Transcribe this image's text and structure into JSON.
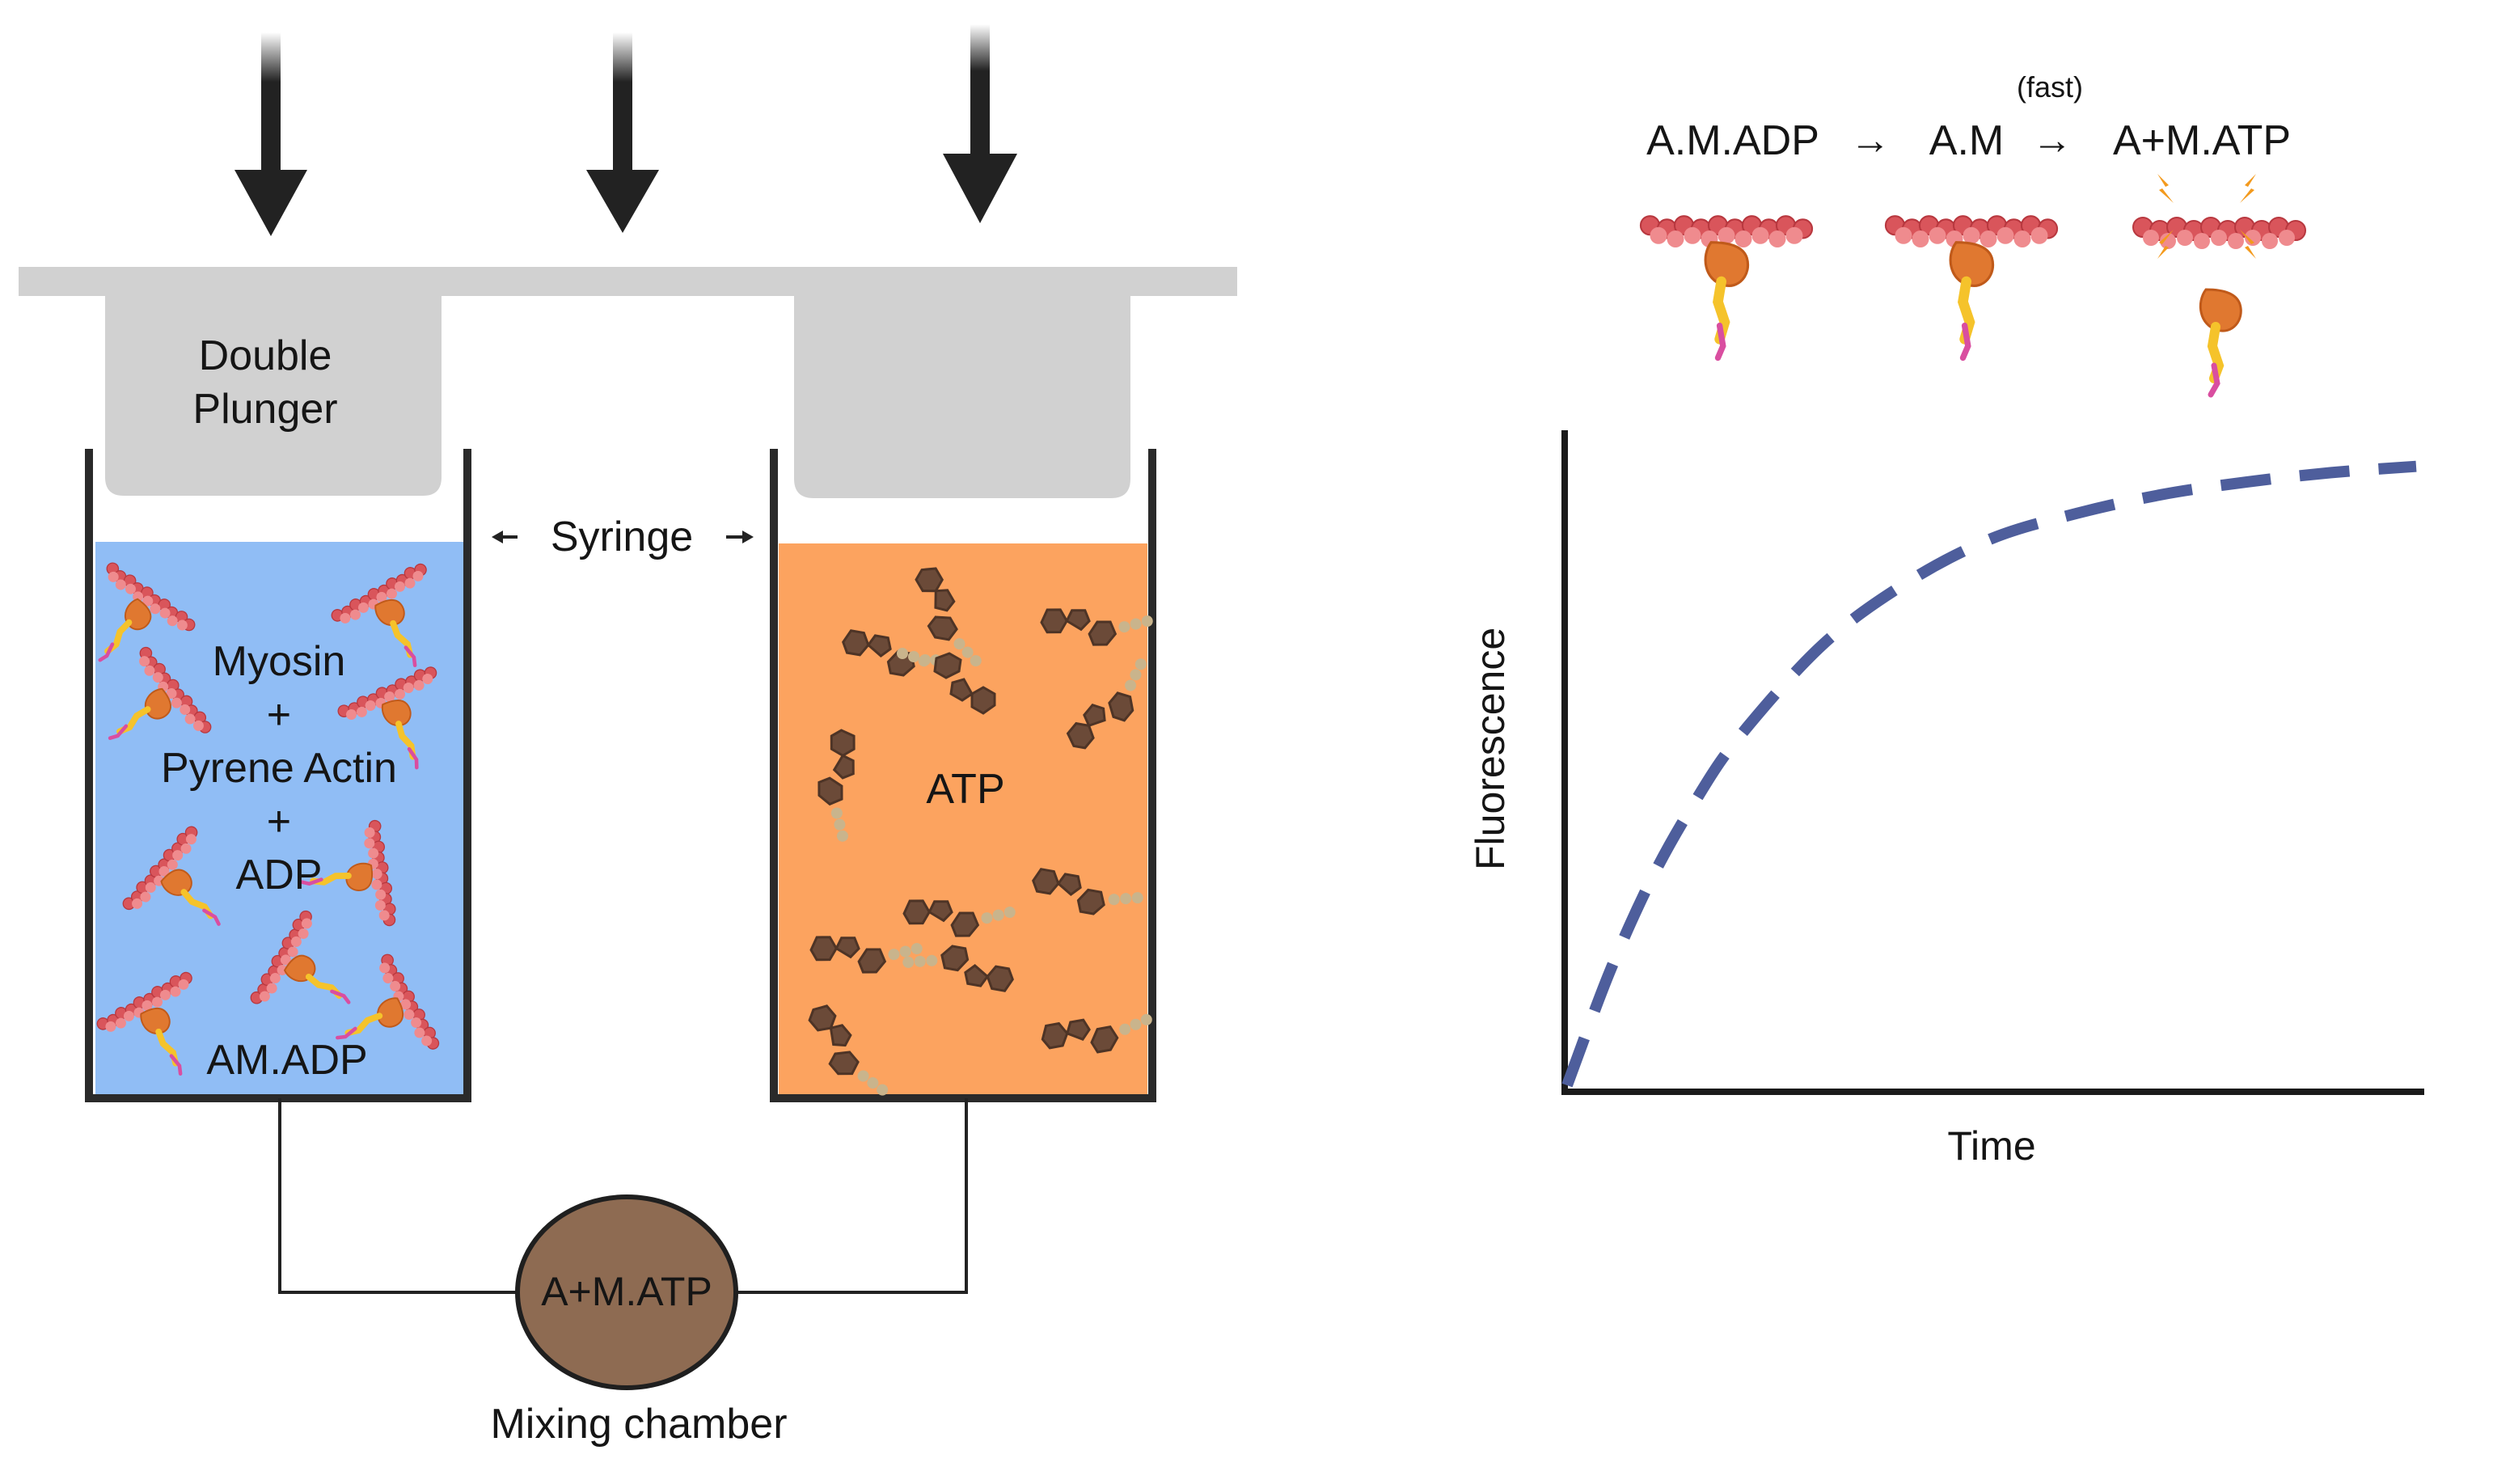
{
  "apparatus": {
    "plunger_label_line1": "Double",
    "plunger_label_line2": "Plunger",
    "syringe_label": "Syringe",
    "left_syringe": {
      "line1": "Myosin",
      "line2": "+",
      "line3": "Pyrene Actin",
      "line4": "+",
      "line5": "ADP",
      "bottom_label": "AM.ADP",
      "fill_color": "#90bdf5"
    },
    "right_syringe": {
      "label": "ATP",
      "fill_color": "#fca35f"
    },
    "mixing_chamber": {
      "content": "A+M.ATP",
      "caption": "Mixing chamber",
      "fill_color": "#8e6b52"
    }
  },
  "reaction": {
    "state1": "A.M.ADP",
    "arrow1": "→",
    "state2": "A.M",
    "arrow2": "→",
    "state3": "A+M.ATP",
    "rate_note": "(fast)"
  },
  "chart_data": {
    "type": "line",
    "xlabel": "Time",
    "ylabel": "Fluorescence",
    "x": [
      0,
      0.05,
      0.1,
      0.15,
      0.2,
      0.3,
      0.4,
      0.5,
      0.6,
      0.7,
      0.8,
      0.9,
      1.0
    ],
    "series": [
      {
        "values": [
          0,
          0.18,
          0.33,
          0.45,
          0.55,
          0.7,
          0.8,
          0.87,
          0.91,
          0.94,
          0.96,
          0.975,
          0.985
        ],
        "color": "#4e5e9c",
        "style": "dashed"
      }
    ],
    "grid": false,
    "legend": "none"
  }
}
